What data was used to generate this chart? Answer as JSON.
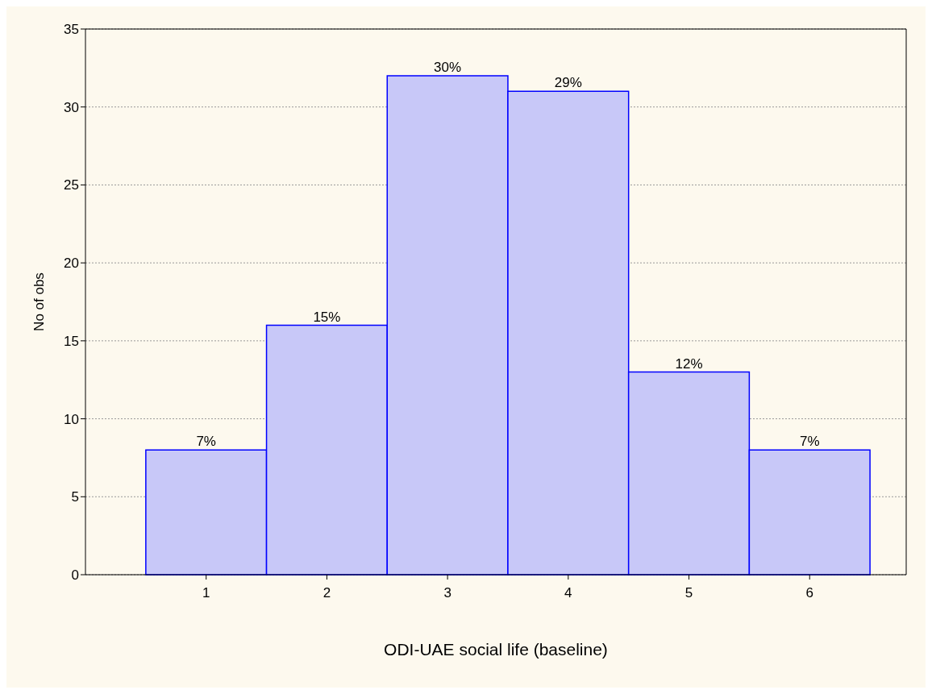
{
  "chart_data": {
    "type": "histogram",
    "xlabel": "ODI-UAE social life (baseline)",
    "ylabel": "No of obs",
    "bins": [
      0.5,
      1.5,
      2.5,
      3.5,
      4.5,
      5.5,
      6.5
    ],
    "values": [
      8,
      16,
      32,
      31,
      13,
      8
    ],
    "annotations": [
      {
        "text": "7%",
        "x": 1,
        "y": 8
      },
      {
        "text": "15%",
        "x": 2,
        "y": 16
      },
      {
        "text": "30%",
        "x": 3,
        "y": 32
      },
      {
        "text": "29%",
        "x": 4,
        "y": 31
      },
      {
        "text": "12%",
        "x": 5,
        "y": 13
      },
      {
        "text": "7%",
        "x": 6,
        "y": 8
      }
    ],
    "color": "#c8c8f8",
    "xlim": [
      0,
      6.8
    ],
    "xticks": [
      1,
      2,
      3,
      4,
      5,
      6
    ],
    "ylim": [
      0,
      35
    ],
    "yticks": [
      0,
      5,
      10,
      15,
      20,
      25,
      30,
      35
    ],
    "grid": "y"
  }
}
